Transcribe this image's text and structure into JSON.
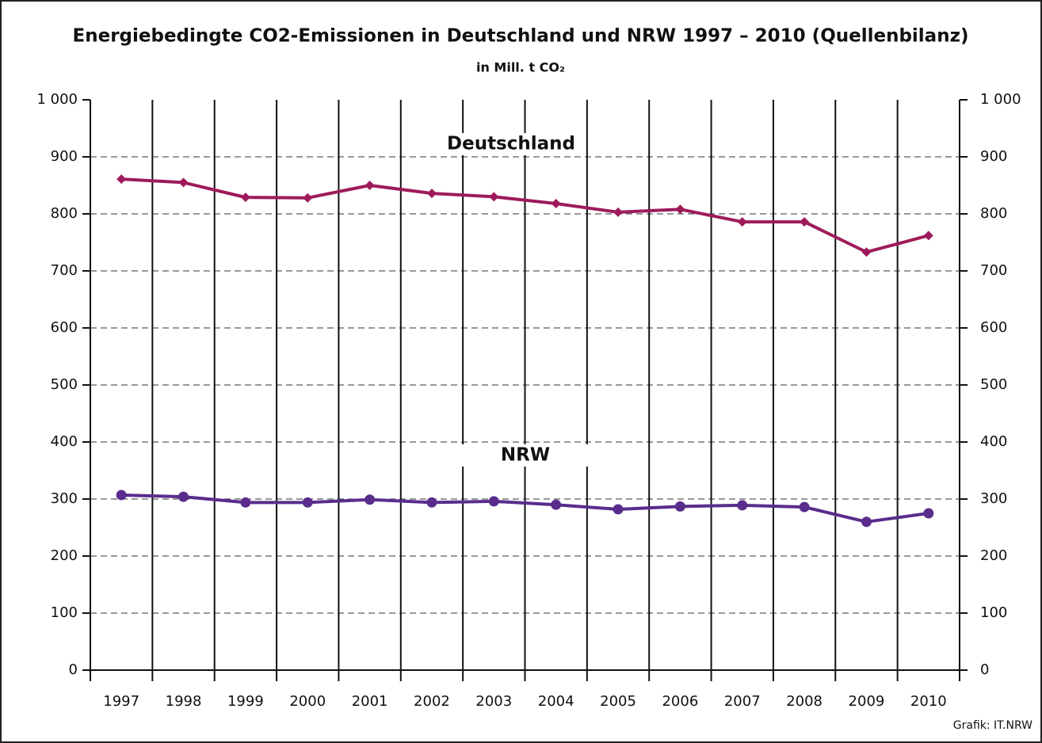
{
  "chart_data": {
    "type": "line",
    "title": "Energiebedingte CO2-Emissionen in Deutschland und NRW 1997 – 2010 (Quellenbilanz)",
    "subtitle": "in Mill. t CO₂",
    "source": "Grafik: IT.NRW",
    "categories": [
      "1997",
      "1998",
      "1999",
      "2000",
      "2001",
      "2002",
      "2003",
      "2004",
      "2005",
      "2006",
      "2007",
      "2008",
      "2009",
      "2010"
    ],
    "series": [
      {
        "name": "Deutschland",
        "color": "#9e1b5b",
        "marker": "diamond",
        "values": [
          861,
          855,
          829,
          828,
          850,
          836,
          830,
          818,
          803,
          808,
          786,
          786,
          733,
          762
        ]
      },
      {
        "name": "NRW",
        "color": "#5a2d8c",
        "marker": "circle",
        "values": [
          307,
          304,
          294,
          294,
          299,
          294,
          296,
          290,
          282,
          287,
          289,
          286,
          260,
          275
        ]
      }
    ],
    "ylim": [
      0,
      1000
    ],
    "yticks": [
      0,
      100,
      200,
      300,
      400,
      500,
      600,
      700,
      800,
      900,
      {
        "value": 1000,
        "label": "1 000"
      }
    ],
    "grid": true
  }
}
